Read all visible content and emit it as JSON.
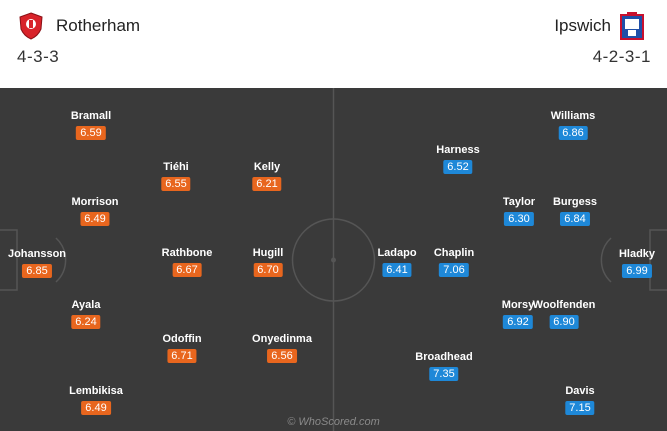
{
  "home": {
    "name": "Rotherham",
    "formation": "4-3-3",
    "players": [
      {
        "name": "Johansson",
        "rating": "6.85"
      },
      {
        "name": "Bramall",
        "rating": "6.59"
      },
      {
        "name": "Morrison",
        "rating": "6.49"
      },
      {
        "name": "Ayala",
        "rating": "6.24"
      },
      {
        "name": "Lembikisa",
        "rating": "6.49"
      },
      {
        "name": "Tiéhi",
        "rating": "6.55"
      },
      {
        "name": "Rathbone",
        "rating": "6.67"
      },
      {
        "name": "Odoffin",
        "rating": "6.71"
      },
      {
        "name": "Kelly",
        "rating": "6.21"
      },
      {
        "name": "Hugill",
        "rating": "6.70"
      },
      {
        "name": "Onyedinma",
        "rating": "6.56"
      }
    ]
  },
  "away": {
    "name": "Ipswich",
    "formation": "4-2-3-1",
    "players": [
      {
        "name": "Hladky",
        "rating": "6.99"
      },
      {
        "name": "Williams",
        "rating": "6.86"
      },
      {
        "name": "Burgess",
        "rating": "6.84"
      },
      {
        "name": "Woolfenden",
        "rating": "6.90"
      },
      {
        "name": "Davis",
        "rating": "7.15"
      },
      {
        "name": "Taylor",
        "rating": "6.30"
      },
      {
        "name": "Morsy",
        "rating": "6.92"
      },
      {
        "name": "Harness",
        "rating": "6.52"
      },
      {
        "name": "Chaplin",
        "rating": "7.06"
      },
      {
        "name": "Broadhead",
        "rating": "7.35"
      },
      {
        "name": "Ladapo",
        "rating": "6.41"
      }
    ]
  },
  "credit": "© WhoScored.com",
  "colors": {
    "home_rating": "#e8661e",
    "away_rating": "#1e88d8",
    "pitch": "#3a3a3a"
  }
}
